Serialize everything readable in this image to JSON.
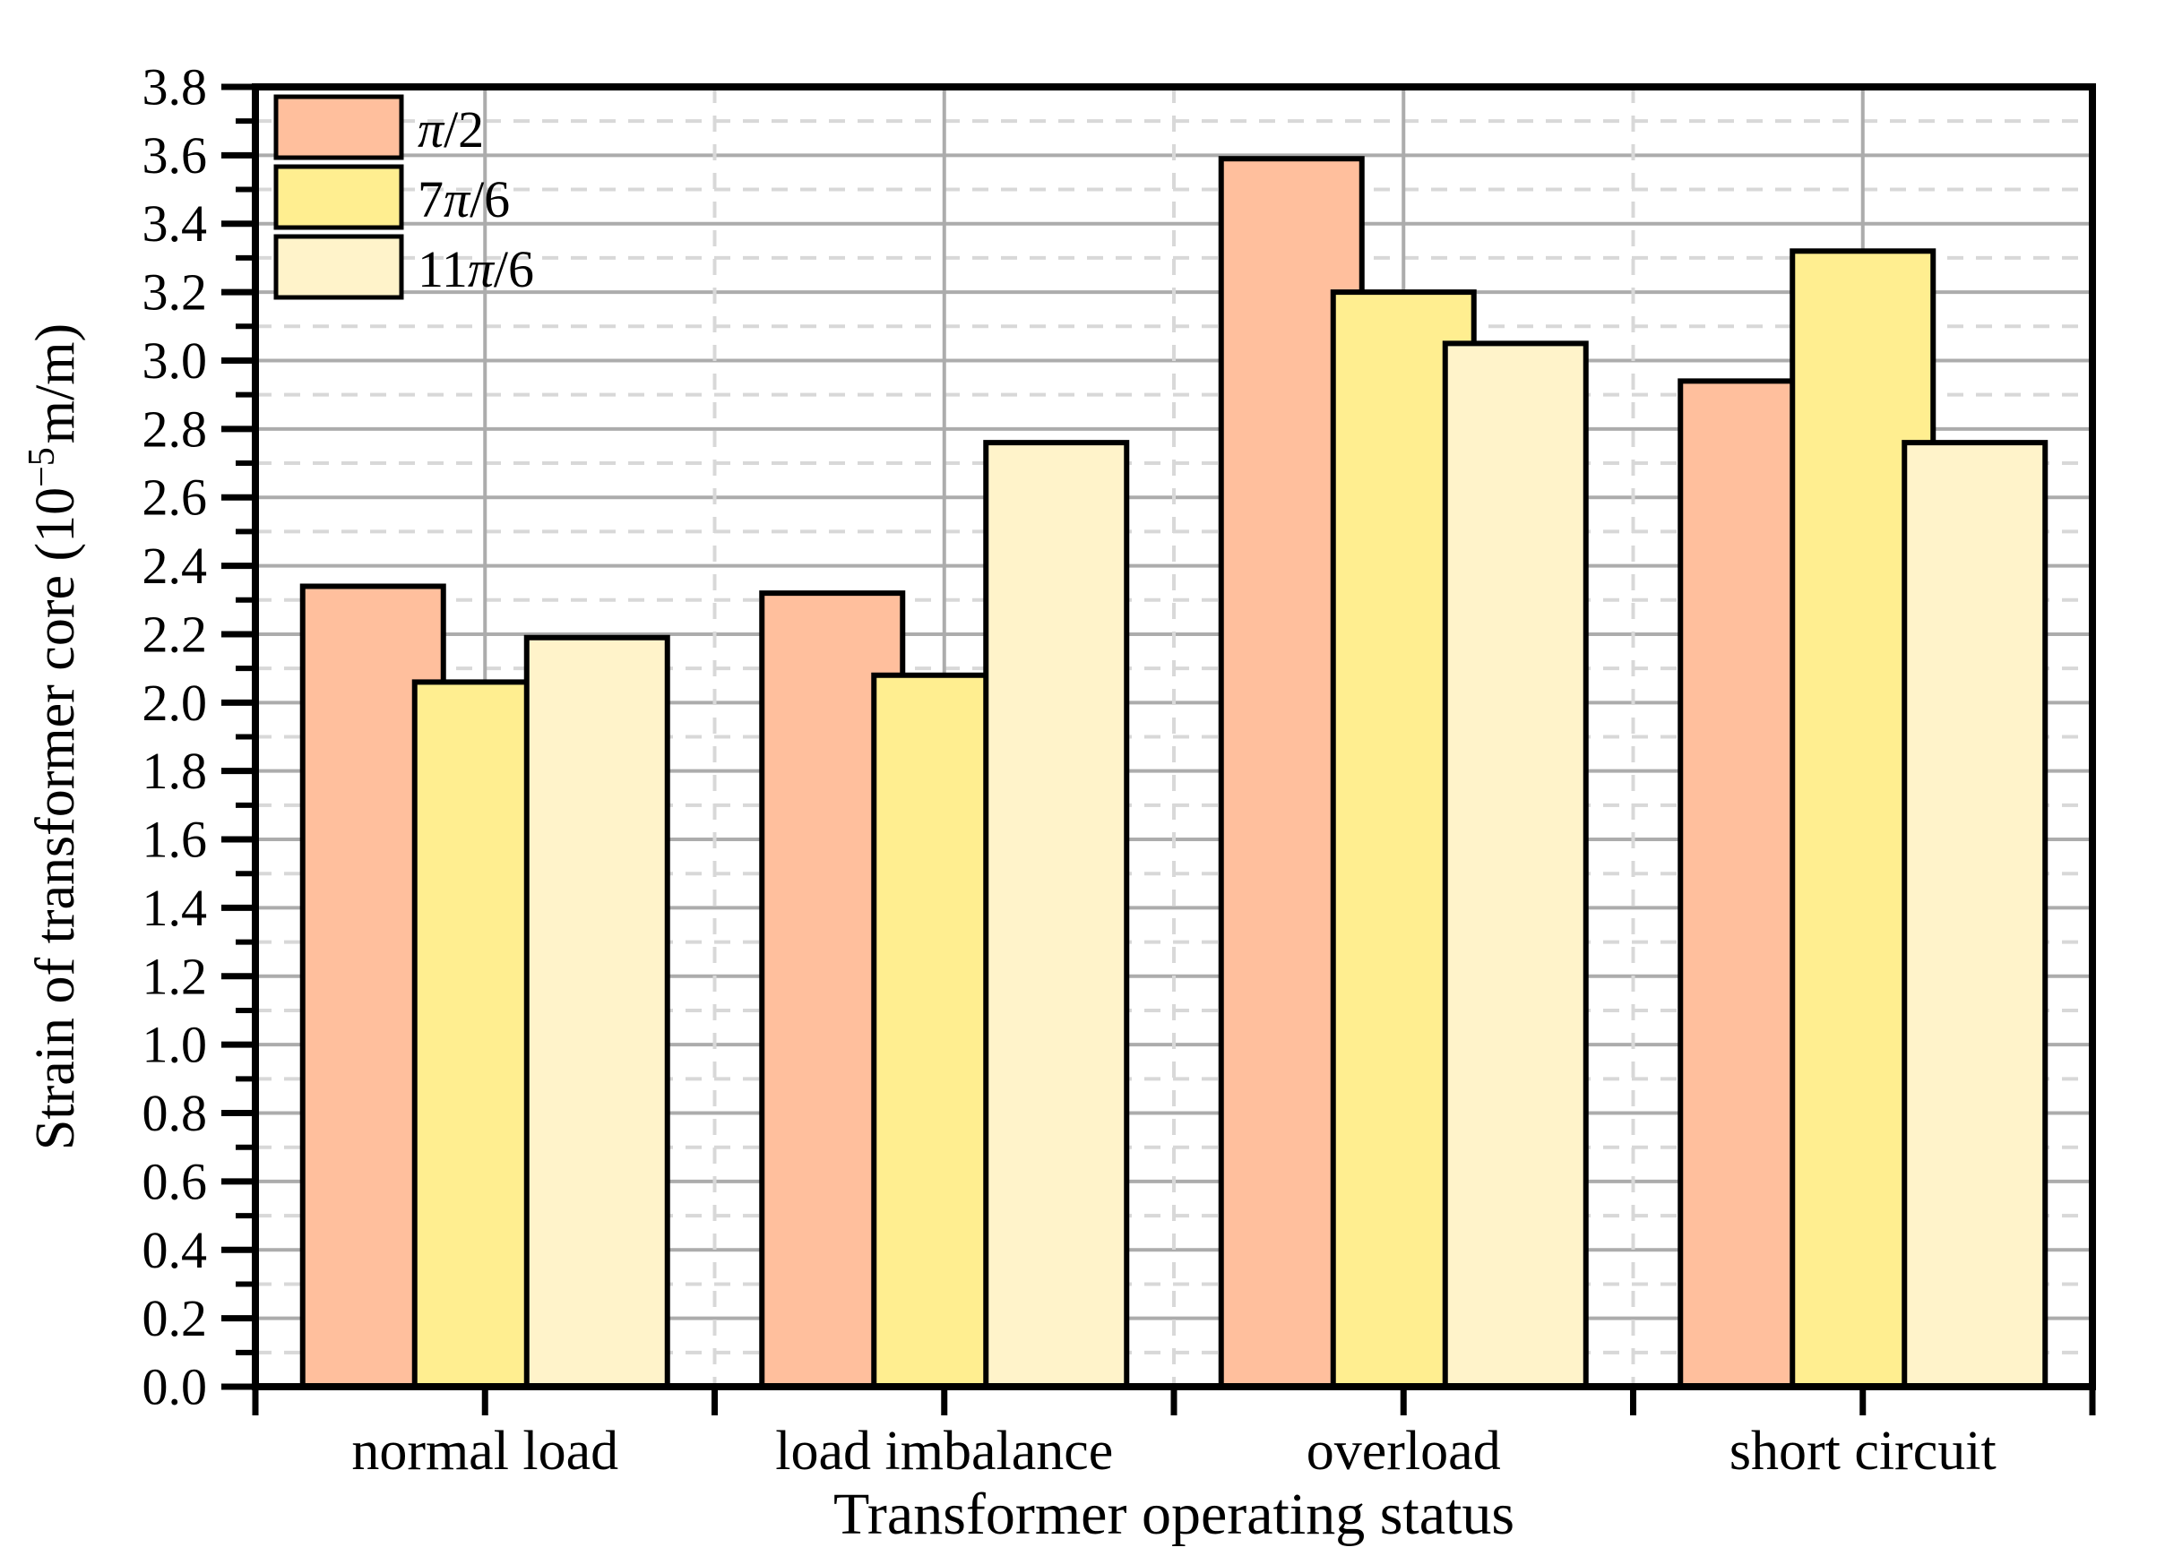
{
  "chart_data": {
    "type": "bar",
    "title": "",
    "xlabel": "Transformer operating status",
    "ylabel": {
      "text": "Strain of transformer core (10−5 m/m)",
      "prefix": "Strain of transformer core (10",
      "superscript": "−5",
      "suffix": "m/m)"
    },
    "categories": [
      "normal load",
      "load imbalance",
      "overload",
      "short circuit"
    ],
    "series": [
      {
        "name": "π/2",
        "color": "#FFBF9D",
        "values": [
          2.34,
          2.32,
          3.59,
          2.94
        ]
      },
      {
        "name": "7π/6",
        "color": "#FFEE90",
        "values": [
          2.06,
          2.08,
          3.2,
          3.32
        ]
      },
      {
        "name": "11π/6",
        "color": "#FFF3CA",
        "values": [
          2.19,
          2.76,
          3.05,
          2.76
        ]
      }
    ],
    "ylim": [
      0.0,
      3.8
    ],
    "ytick_step": 0.2,
    "yminor_step": 0.1,
    "yticks": [
      "0.0",
      "0.2",
      "0.4",
      "0.6",
      "0.8",
      "1.0",
      "1.2",
      "1.4",
      "1.6",
      "1.8",
      "2.0",
      "2.2",
      "2.4",
      "2.6",
      "2.8",
      "3.0",
      "3.2",
      "3.4",
      "3.6",
      "3.8"
    ],
    "grid": {
      "horizontal_major": "solid",
      "horizontal_minor": "dashed",
      "vertical_at_group_centers": "solid",
      "vertical_at_group_boundaries": "dashed"
    },
    "legend_position": "top-left",
    "legend": [
      {
        "label": "π/2"
      },
      {
        "label": "7π/6"
      },
      {
        "label": "11π/6"
      }
    ],
    "colors": {
      "bar_outline": "#000000",
      "axis": "#000000",
      "grid_major": "#ACACAC",
      "grid_minor": "#D8D8D8"
    }
  }
}
